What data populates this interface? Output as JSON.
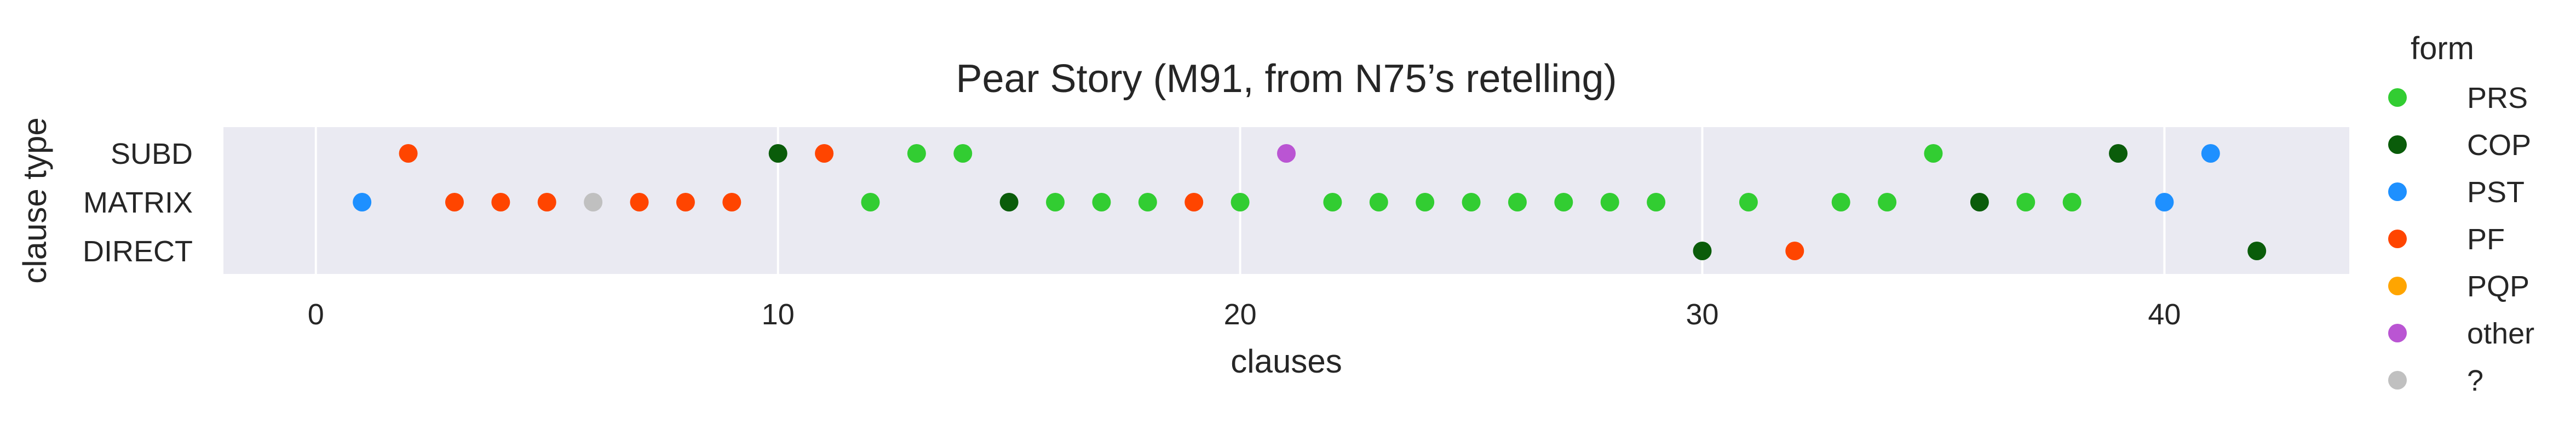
{
  "chart_data": {
    "type": "scatter",
    "title": "Pear Story (M91, from N75’s retelling)",
    "xlabel": "clauses",
    "ylabel": "clause type",
    "xlim": [
      -2,
      44
    ],
    "x_ticks": [
      0,
      10,
      20,
      30,
      40
    ],
    "categories": [
      "SUBD",
      "MATRIX",
      "DIRECT"
    ],
    "grid": true,
    "legend_title": "form",
    "legend_position": "right",
    "series": [
      {
        "name": "PRS",
        "color": "#32cd32",
        "points": [
          {
            "x": 12,
            "y": "MATRIX"
          },
          {
            "x": 13,
            "y": "SUBD"
          },
          {
            "x": 14,
            "y": "SUBD"
          },
          {
            "x": 16,
            "y": "MATRIX"
          },
          {
            "x": 17,
            "y": "MATRIX"
          },
          {
            "x": 18,
            "y": "MATRIX"
          },
          {
            "x": 20,
            "y": "MATRIX"
          },
          {
            "x": 22,
            "y": "MATRIX"
          },
          {
            "x": 23,
            "y": "MATRIX"
          },
          {
            "x": 24,
            "y": "MATRIX"
          },
          {
            "x": 25,
            "y": "MATRIX"
          },
          {
            "x": 26,
            "y": "MATRIX"
          },
          {
            "x": 27,
            "y": "MATRIX"
          },
          {
            "x": 28,
            "y": "MATRIX"
          },
          {
            "x": 29,
            "y": "MATRIX"
          },
          {
            "x": 31,
            "y": "MATRIX"
          },
          {
            "x": 33,
            "y": "MATRIX"
          },
          {
            "x": 34,
            "y": "MATRIX"
          },
          {
            "x": 35,
            "y": "SUBD"
          },
          {
            "x": 37,
            "y": "MATRIX"
          },
          {
            "x": 38,
            "y": "MATRIX"
          }
        ]
      },
      {
        "name": "COP",
        "color": "#0a5c0a",
        "points": [
          {
            "x": 10,
            "y": "SUBD"
          },
          {
            "x": 15,
            "y": "MATRIX"
          },
          {
            "x": 30,
            "y": "DIRECT"
          },
          {
            "x": 36,
            "y": "MATRIX"
          },
          {
            "x": 39,
            "y": "SUBD"
          },
          {
            "x": 42,
            "y": "DIRECT"
          }
        ]
      },
      {
        "name": "PST",
        "color": "#1e90ff",
        "points": [
          {
            "x": 1,
            "y": "MATRIX"
          },
          {
            "x": 40,
            "y": "MATRIX"
          },
          {
            "x": 41,
            "y": "SUBD"
          }
        ]
      },
      {
        "name": "PF",
        "color": "#ff4500",
        "points": [
          {
            "x": 2,
            "y": "SUBD"
          },
          {
            "x": 3,
            "y": "MATRIX"
          },
          {
            "x": 4,
            "y": "MATRIX"
          },
          {
            "x": 5,
            "y": "MATRIX"
          },
          {
            "x": 7,
            "y": "MATRIX"
          },
          {
            "x": 8,
            "y": "MATRIX"
          },
          {
            "x": 9,
            "y": "MATRIX"
          },
          {
            "x": 11,
            "y": "SUBD"
          },
          {
            "x": 19,
            "y": "MATRIX"
          },
          {
            "x": 32,
            "y": "DIRECT"
          }
        ]
      },
      {
        "name": "PQP",
        "color": "#ffa500",
        "points": []
      },
      {
        "name": "other",
        "color": "#ba55d3",
        "points": [
          {
            "x": 21,
            "y": "SUBD"
          }
        ]
      },
      {
        "name": "?",
        "color": "#c0c0c0",
        "points": [
          {
            "x": 6,
            "y": "MATRIX"
          }
        ]
      }
    ]
  },
  "style": {
    "plot_background": "#eaeaf2",
    "grid_color": "#ffffff",
    "text_color": "#262626"
  }
}
